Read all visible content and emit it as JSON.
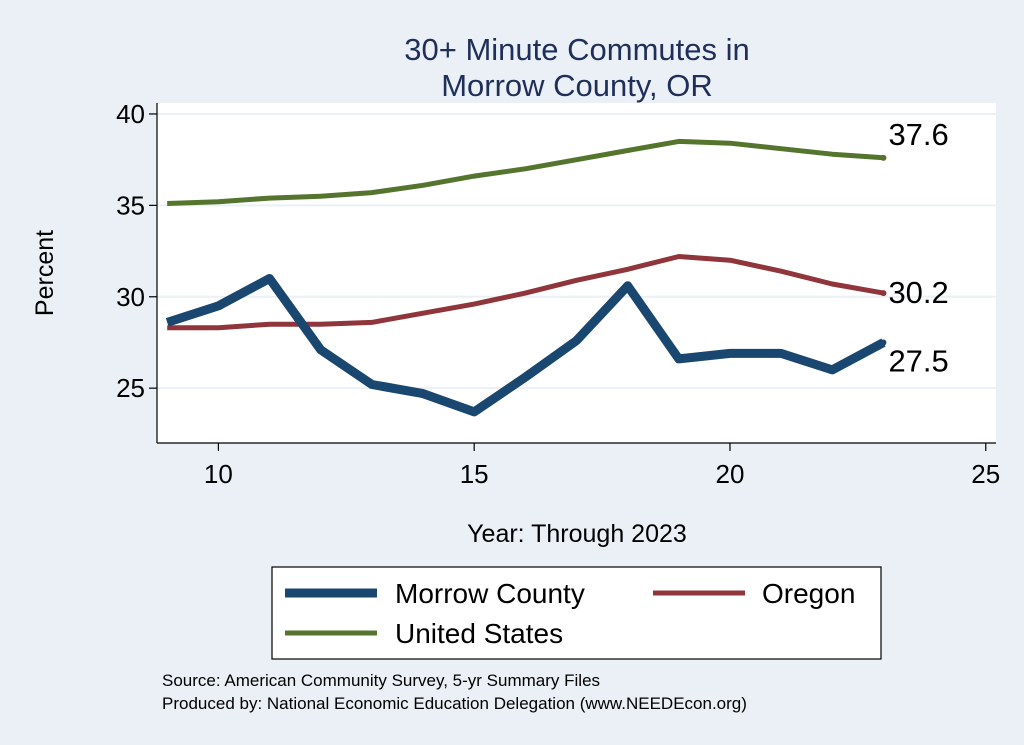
{
  "chart_data": {
    "type": "line",
    "title": [
      "30+ Minute Commutes in",
      "Morrow County, OR"
    ],
    "xlabel": "Year: Through 2023",
    "ylabel": "Percent",
    "xlim": [
      8.8,
      25.2
    ],
    "ylim": [
      22,
      40.6
    ],
    "xticks": [
      10,
      15,
      20,
      25
    ],
    "yticks": [
      25,
      30,
      35,
      40
    ],
    "x": [
      9,
      10,
      11,
      12,
      13,
      14,
      15,
      16,
      17,
      18,
      19,
      20,
      21,
      22,
      23
    ],
    "series": [
      {
        "name": "Morrow County",
        "color": "#1a476f",
        "values": [
          28.6,
          29.5,
          31.0,
          27.1,
          25.2,
          24.7,
          23.7,
          25.6,
          27.6,
          30.6,
          26.6,
          26.9,
          26.9,
          26.0,
          27.5
        ],
        "end_label": "27.5"
      },
      {
        "name": "Oregon",
        "color": "#90353b",
        "values": [
          28.3,
          28.3,
          28.5,
          28.5,
          28.6,
          29.1,
          29.6,
          30.2,
          30.9,
          31.5,
          32.2,
          32.0,
          31.4,
          30.7,
          30.2
        ],
        "end_label": "30.2"
      },
      {
        "name": "United States",
        "color": "#55752f",
        "values": [
          35.1,
          35.2,
          35.4,
          35.5,
          35.7,
          36.1,
          36.6,
          37.0,
          37.5,
          38.0,
          38.5,
          38.4,
          38.1,
          37.8,
          37.6
        ],
        "end_label": "37.6"
      }
    ],
    "legend": {
      "position": "bottom",
      "entries": [
        "Morrow County",
        "Oregon",
        "United States"
      ]
    },
    "notes": [
      "Source: American Community Survey, 5-yr Summary Files",
      "Produced by: National Economic Education Delegation (www.NEEDEcon.org)"
    ]
  }
}
